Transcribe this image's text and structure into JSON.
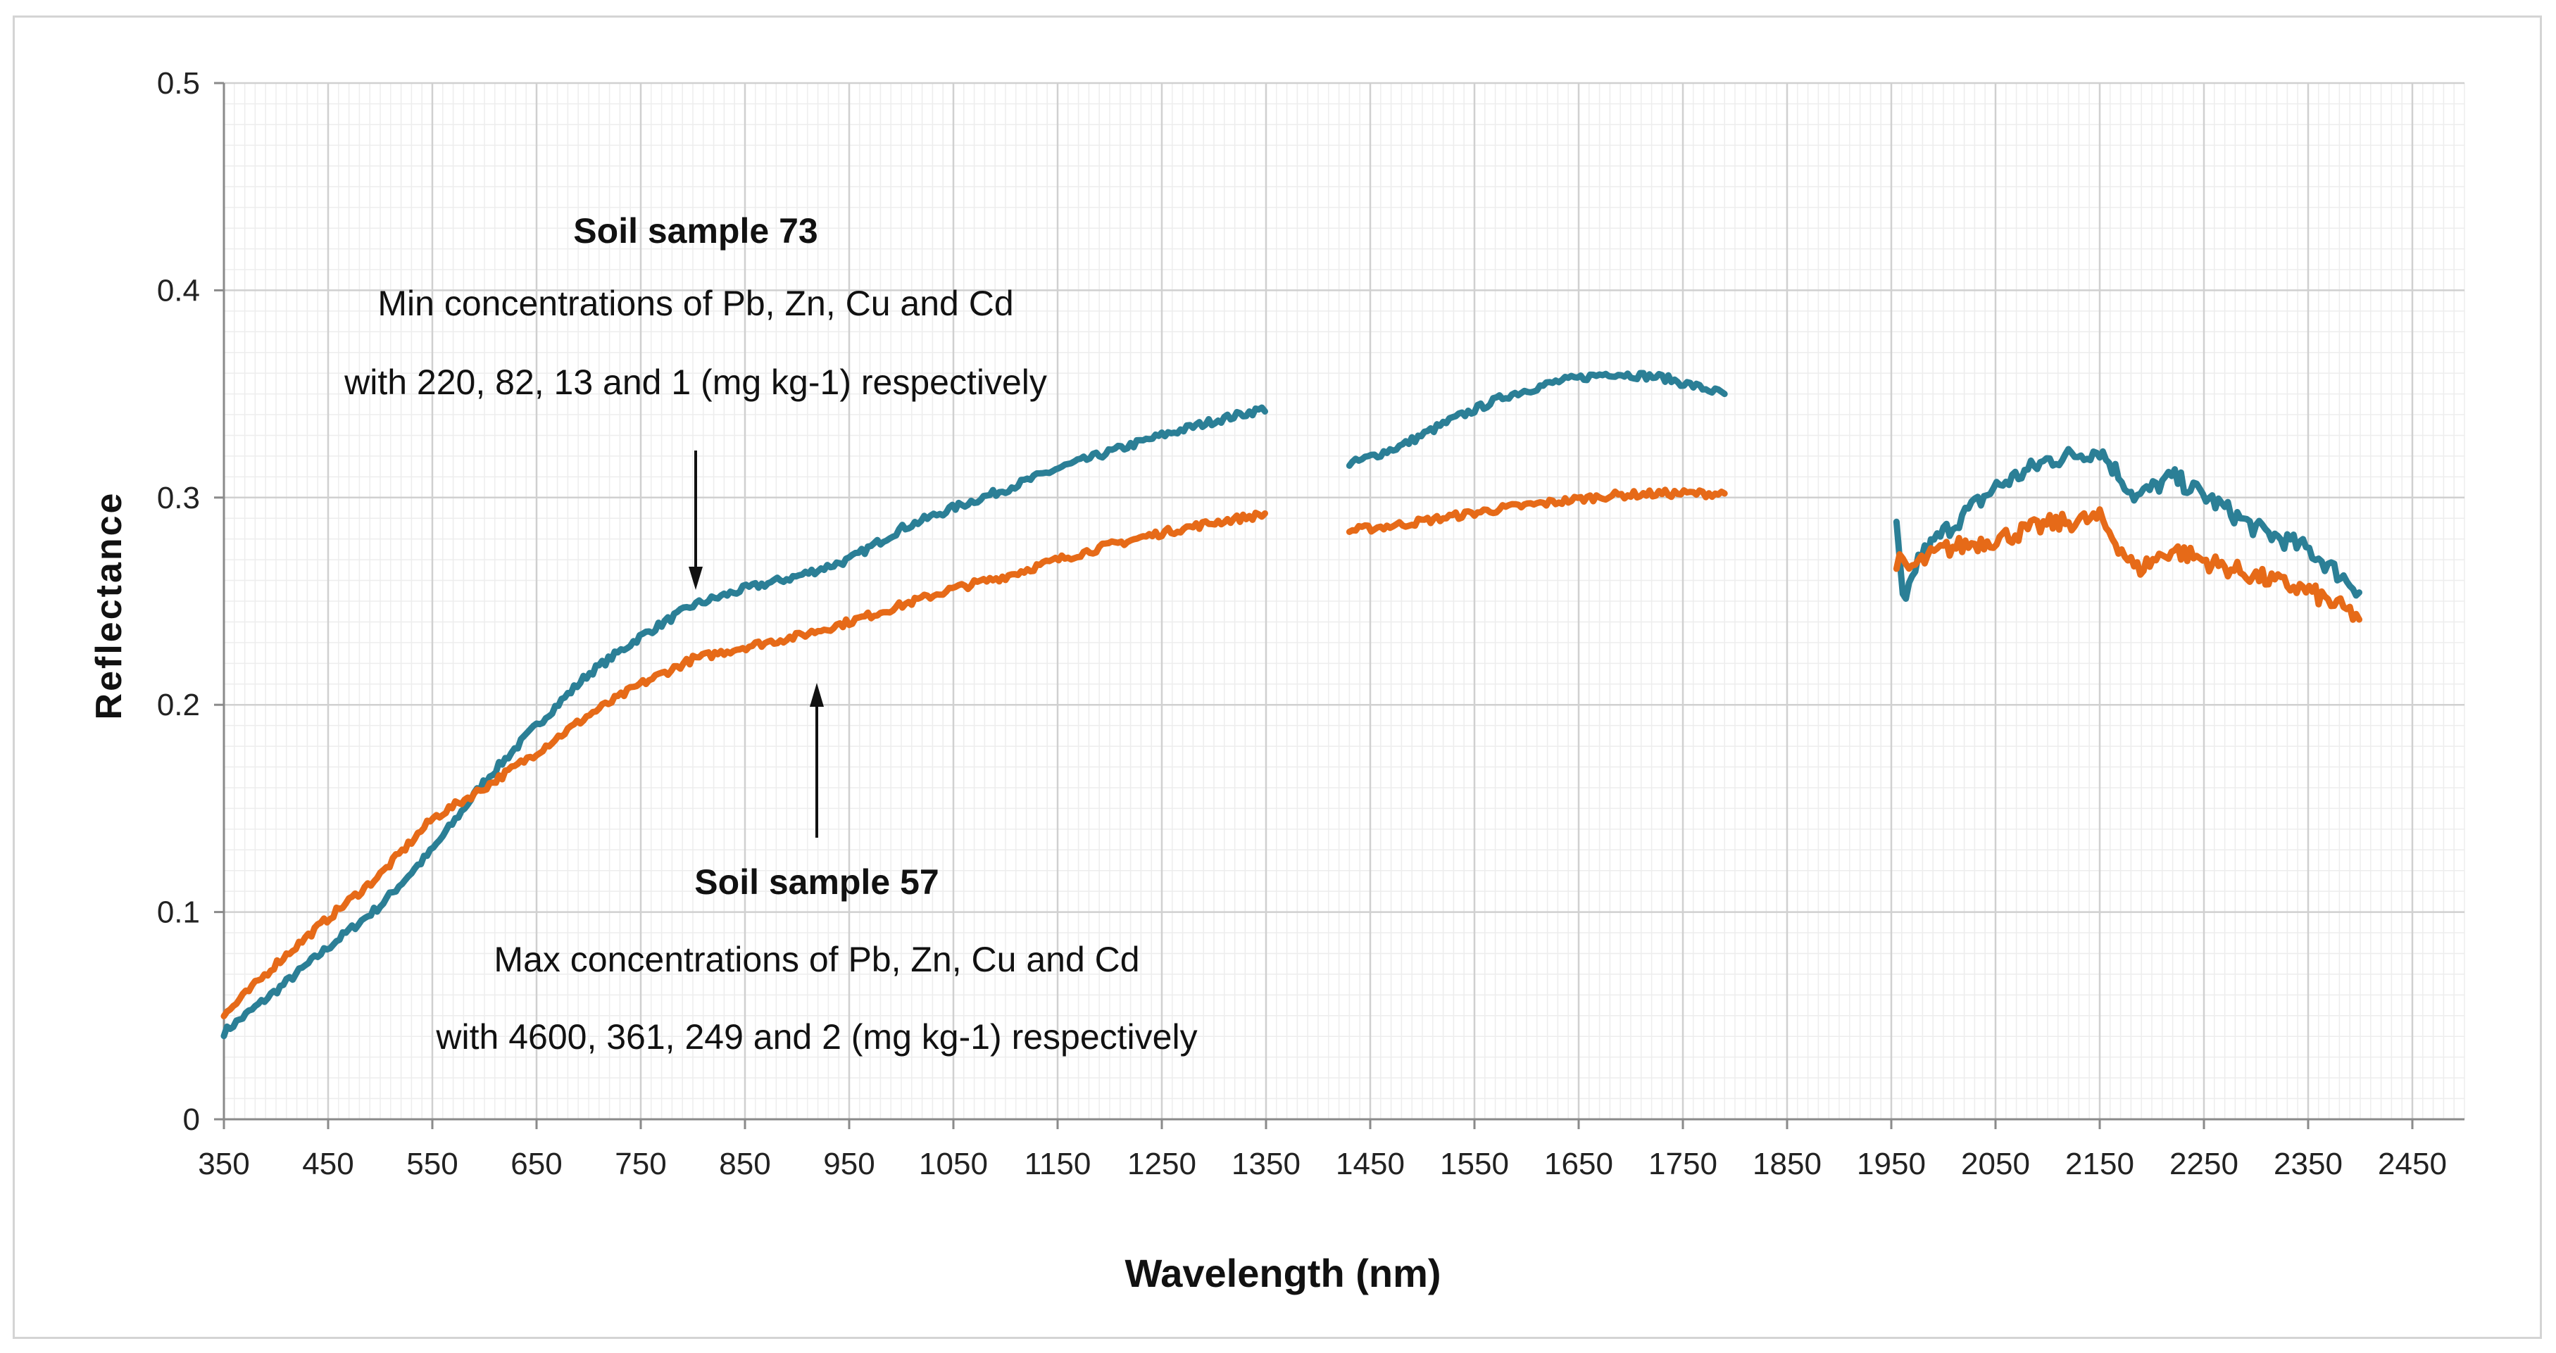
{
  "chart_data": {
    "type": "line",
    "xlabel": "Wavelength (nm)",
    "ylabel": "Reflectance",
    "xlim": [
      350,
      2500
    ],
    "ylim": [
      0,
      0.5
    ],
    "grid": true,
    "x_ticks": [
      350,
      450,
      550,
      650,
      750,
      850,
      950,
      1050,
      1150,
      1250,
      1350,
      1450,
      1550,
      1650,
      1750,
      1850,
      1950,
      2050,
      2150,
      2250,
      2350,
      2450
    ],
    "y_ticks": [
      0,
      0.1,
      0.2,
      0.3,
      0.4,
      0.5
    ],
    "y_tick_labels": [
      "0",
      "0.1",
      "0.2",
      "0.3",
      "0.4",
      "0.5"
    ],
    "series": [
      {
        "name": "Soil sample 73",
        "color": "#2b7f96",
        "segments": [
          {
            "x": [
              350,
              400,
              450,
              500,
              550,
              600,
              650,
              700,
              750,
              800,
              850,
              900,
              950,
              1000,
              1050,
              1100,
              1150,
              1200,
              1250,
              1300,
              1350
            ],
            "y": [
              0.042,
              0.062,
              0.083,
              0.103,
              0.13,
              0.163,
              0.19,
              0.215,
              0.233,
              0.248,
              0.256,
              0.262,
              0.27,
              0.285,
              0.295,
              0.304,
              0.314,
              0.322,
              0.33,
              0.337,
              0.343
            ]
          },
          {
            "x": [
              1430,
              1480,
              1530,
              1580,
              1630,
              1680,
              1730,
              1790
            ],
            "y": [
              0.316,
              0.325,
              0.338,
              0.349,
              0.356,
              0.36,
              0.358,
              0.35
            ]
          },
          {
            "x": [
              1955,
              1962,
              1975,
              2000,
              2050,
              2100,
              2150,
              2185,
              2220,
              2260,
              2300,
              2350,
              2400
            ],
            "y": [
              0.285,
              0.245,
              0.27,
              0.283,
              0.305,
              0.318,
              0.323,
              0.3,
              0.31,
              0.298,
              0.285,
              0.275,
              0.255
            ]
          }
        ]
      },
      {
        "name": "Soil sample 57",
        "color": "#e66a18",
        "segments": [
          {
            "x": [
              350,
              400,
              450,
              500,
              550,
              600,
              650,
              700,
              750,
              800,
              850,
              900,
              950,
              1000,
              1050,
              1100,
              1150,
              1200,
              1250,
              1300,
              1350
            ],
            "y": [
              0.05,
              0.075,
              0.097,
              0.118,
              0.145,
              0.16,
              0.177,
              0.195,
              0.21,
              0.222,
              0.228,
              0.233,
              0.24,
              0.248,
              0.256,
              0.262,
              0.27,
              0.277,
              0.283,
              0.288,
              0.292
            ]
          },
          {
            "x": [
              1430,
              1480,
              1530,
              1580,
              1630,
              1680,
              1730,
              1790
            ],
            "y": [
              0.284,
              0.287,
              0.291,
              0.295,
              0.298,
              0.301,
              0.302,
              0.302
            ]
          },
          {
            "x": [
              1955,
              1965,
              2000,
              2050,
              2100,
              2150,
              2185,
              2220,
              2260,
              2300,
              2350,
              2400
            ],
            "y": [
              0.27,
              0.265,
              0.275,
              0.28,
              0.287,
              0.29,
              0.265,
              0.275,
              0.268,
              0.262,
              0.255,
              0.242
            ]
          }
        ]
      }
    ],
    "annotations": [
      {
        "title": "Soil sample 73",
        "lines": [
          "Min concentrations of Pb, Zn, Cu and Cd",
          "with 220, 82, 13 and 1 (mg kg-1) respectively"
        ],
        "arrow_to": [
          800,
          0.245
        ]
      },
      {
        "title": "Soil sample 57",
        "lines": [
          "Max concentrations of Pb, Zn, Cu and Cd",
          "with 4600, 361, 249 and 2 (mg kg-1) respectively"
        ],
        "arrow_to": [
          920,
          0.21
        ]
      }
    ]
  }
}
